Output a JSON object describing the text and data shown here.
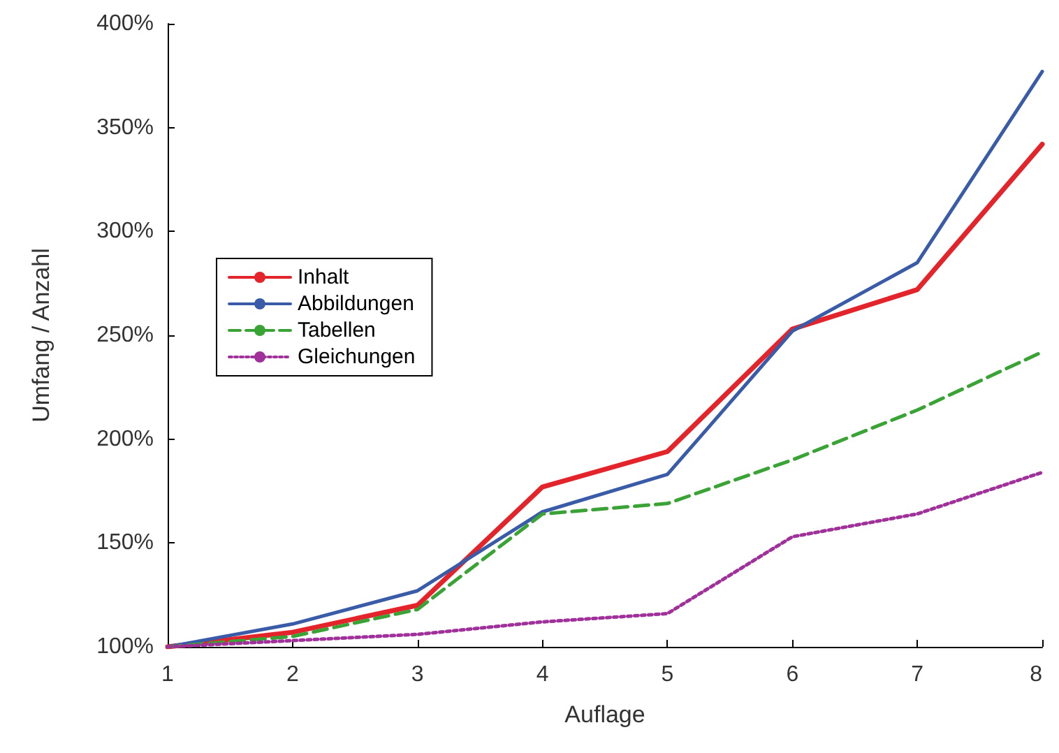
{
  "chart_data": {
    "type": "line",
    "xlabel": "Auflage",
    "ylabel": "Umfang / Anzahl",
    "x": [
      1,
      2,
      3,
      4,
      5,
      6,
      7,
      8
    ],
    "xlim": [
      1,
      8
    ],
    "xticks": [
      1,
      2,
      3,
      4,
      5,
      6,
      7,
      8
    ],
    "ylim": [
      100,
      400
    ],
    "yticks": [
      {
        "value": 100,
        "label": "100%"
      },
      {
        "value": 150,
        "label": "150%"
      },
      {
        "value": 200,
        "label": "200%"
      },
      {
        "value": 250,
        "label": "250%"
      },
      {
        "value": 300,
        "label": "300%"
      },
      {
        "value": 350,
        "label": "350%"
      },
      {
        "value": 400,
        "label": "400%"
      }
    ],
    "grid": false,
    "legend": "left",
    "marker": "none",
    "series": [
      {
        "name": "Inhalt",
        "color": "#e3242b",
        "line_style": "solid",
        "values": [
          100,
          107,
          120,
          177,
          194,
          253,
          272,
          342
        ]
      },
      {
        "name": "Abbildungen",
        "color": "#3a5ba8",
        "line_style": "solid",
        "values": [
          100,
          111,
          127,
          165,
          183,
          252,
          285,
          377
        ]
      },
      {
        "name": "Tabellen",
        "color": "#3aa335",
        "line_style": "dashed",
        "values": [
          100,
          105,
          118,
          164,
          169,
          190,
          214,
          242
        ]
      },
      {
        "name": "Gleichungen",
        "color": "#a0309a",
        "line_style": "dotted",
        "values": [
          100,
          103,
          106,
          112,
          116,
          153,
          164,
          184
        ]
      }
    ]
  }
}
